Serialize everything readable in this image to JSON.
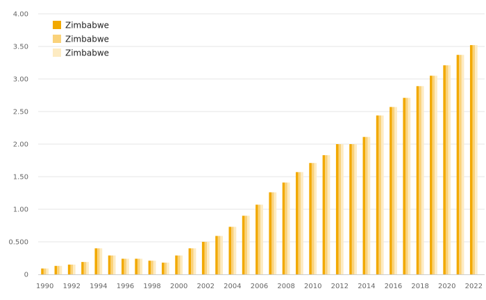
{
  "chart_data": {
    "type": "bar",
    "title": "",
    "xlabel": "",
    "ylabel": "",
    "ylim": [
      0,
      4
    ],
    "yticks": [
      "0",
      "0.500",
      "1.00",
      "1.50",
      "2.00",
      "2.50",
      "3.00",
      "3.50",
      "4.00"
    ],
    "xtick_labels": [
      "1990",
      "1992",
      "1994",
      "1996",
      "1998",
      "2000",
      "2002",
      "2004",
      "2006",
      "2008",
      "2010",
      "2012",
      "2014",
      "2016",
      "2018",
      "2020",
      "2022"
    ],
    "categories": [
      "1990",
      "1991",
      "1992",
      "1993",
      "1994",
      "1995",
      "1996",
      "1997",
      "1998",
      "1999",
      "2000",
      "2001",
      "2002",
      "2003",
      "2004",
      "2005",
      "2006",
      "2007",
      "2008",
      "2009",
      "2010",
      "2011",
      "2012",
      "2013",
      "2014",
      "2015",
      "2016",
      "2017",
      "2018",
      "2019",
      "2020",
      "2021",
      "2022"
    ],
    "series": [
      {
        "name": "Zimbabwe",
        "color": "#F2A900",
        "values": [
          0.09,
          0.13,
          0.15,
          0.19,
          0.4,
          0.29,
          0.24,
          0.24,
          0.21,
          0.18,
          0.29,
          0.4,
          0.5,
          0.59,
          0.73,
          0.9,
          1.07,
          1.26,
          1.41,
          1.57,
          1.71,
          1.83,
          2.0,
          2.0,
          2.11,
          2.44,
          2.57,
          2.71,
          2.89,
          3.05,
          3.21,
          3.37,
          3.52
        ]
      },
      {
        "name": "Zimbabwe",
        "color": "#FAD27A",
        "values": [
          0.09,
          0.13,
          0.15,
          0.19,
          0.4,
          0.29,
          0.24,
          0.24,
          0.21,
          0.18,
          0.29,
          0.4,
          0.5,
          0.59,
          0.73,
          0.9,
          1.07,
          1.26,
          1.41,
          1.57,
          1.71,
          1.83,
          2.0,
          2.0,
          2.11,
          2.44,
          2.57,
          2.71,
          2.89,
          3.05,
          3.21,
          3.37,
          3.52
        ]
      },
      {
        "name": "Zimbabwe",
        "color": "#FDEBC2",
        "values": [
          0.09,
          0.13,
          0.15,
          0.19,
          0.4,
          0.29,
          0.24,
          0.24,
          0.21,
          0.18,
          0.29,
          0.4,
          0.5,
          0.59,
          0.73,
          0.9,
          1.07,
          1.26,
          1.41,
          1.57,
          1.71,
          1.83,
          2.0,
          2.0,
          2.11,
          2.44,
          2.57,
          2.71,
          2.89,
          3.05,
          3.21,
          3.37,
          3.52
        ]
      }
    ],
    "grid": true,
    "legend_position": "top-left"
  }
}
